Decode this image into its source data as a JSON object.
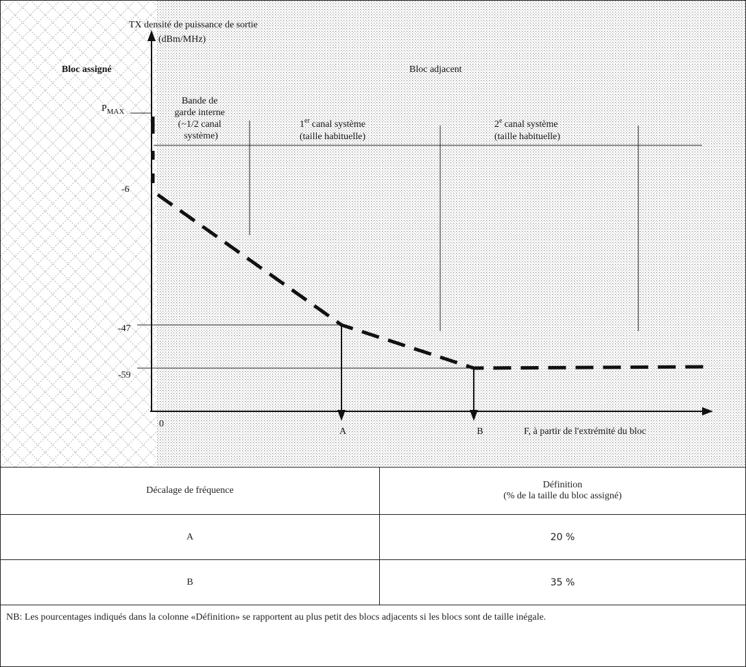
{
  "figure": {
    "y_axis_title": "TX densité de puissance de sortie",
    "y_axis_unit": "(dBm/MHz)",
    "x_axis_title": "F, à partir de l'extrémité du bloc",
    "origin_label": "0",
    "assigned_block_label": "Bloc assigné",
    "adjacent_block_label": "Bloc adjacent",
    "pmax_label": "P",
    "pmax_subscript": "MAX",
    "guard_band_lines": [
      "Bande de",
      "garde interne",
      "(~1/2 canal",
      "système)"
    ],
    "channel1_line1": "canal système",
    "channel1_ordinal": "1",
    "channel1_ordinal_sup": "er",
    "channel1_line2": "(taille habituelle)",
    "channel2_line1": "canal système",
    "channel2_ordinal": "2",
    "channel2_ordinal_sup": "e",
    "channel2_line2": "(taille habituelle)",
    "y_ticks": [
      "-6",
      "-47",
      "-59"
    ],
    "point_a_label": "A",
    "point_b_label": "B",
    "colors": {
      "ink": "#151515",
      "shade_dots": "#9a9a9a",
      "hatch": "#b8b8b8"
    }
  },
  "table": {
    "header_col1": "Décalage de fréquence",
    "header_col2_line1": "Définition",
    "header_col2_line2": "(% de la taille du bloc assigné)",
    "rows": [
      {
        "offset": "A",
        "definition": "20 %"
      },
      {
        "offset": "B",
        "definition": "35 %"
      }
    ],
    "note": "NB: Les pourcentages indiqués dans la colonne «Définition» se rapportent au plus petit des blocs adjacents si les blocs sont de taille inégale."
  }
}
